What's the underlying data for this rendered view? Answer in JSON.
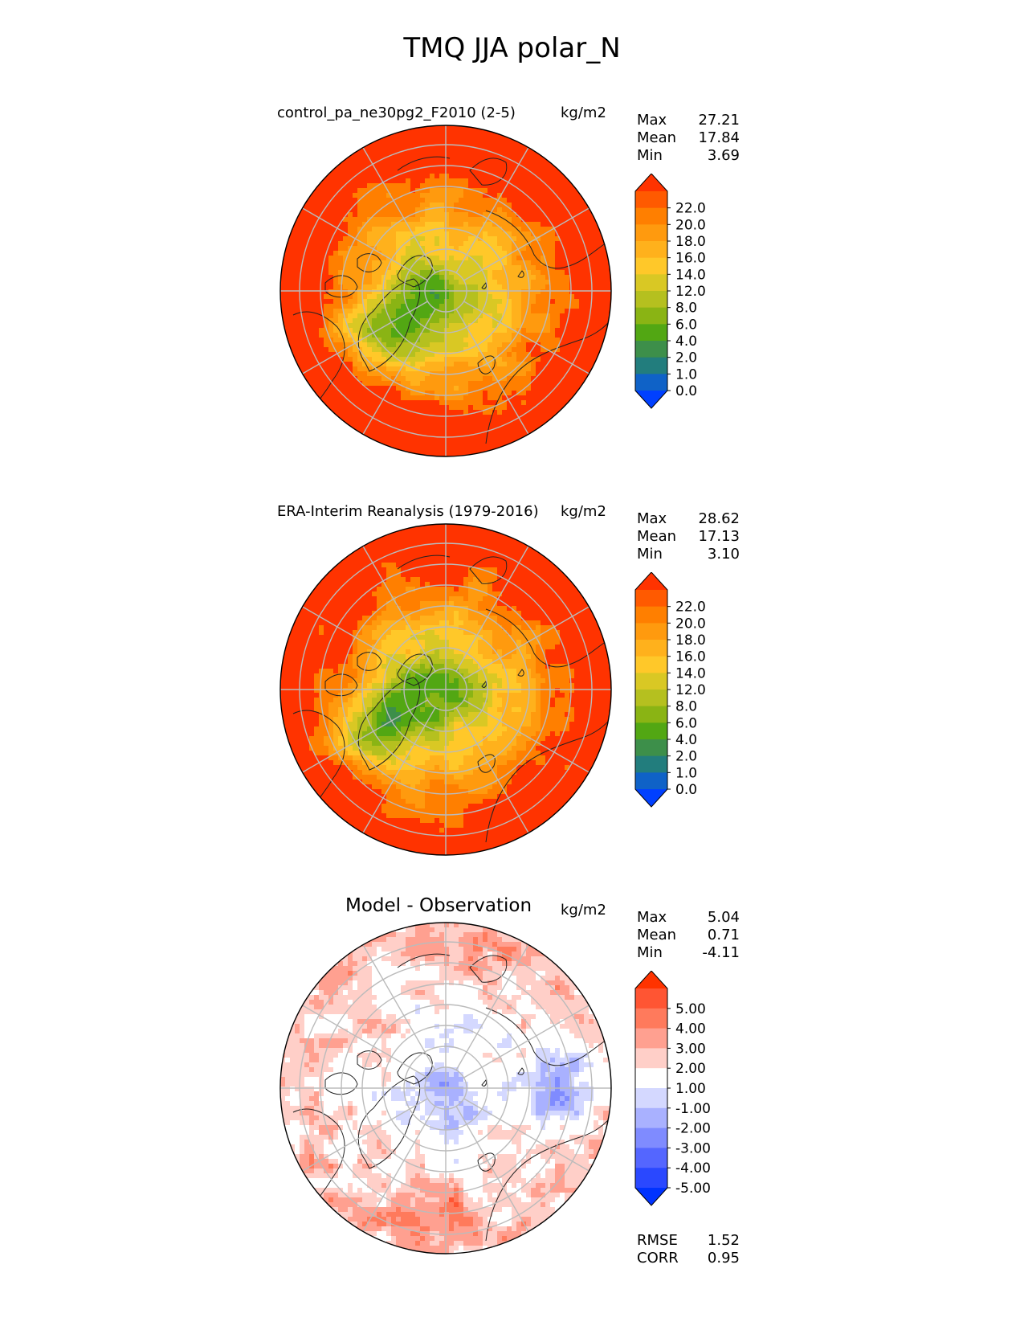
{
  "title": "TMQ JJA polar_N",
  "panels": [
    {
      "title": "control_pa_ne30pg2_F2010 (2-5)",
      "units": "kg/m2",
      "stats": {
        "max_label": "Max",
        "max": "27.21",
        "mean_label": "Mean",
        "mean": "17.84",
        "min_label": "Min",
        "min": "3.69"
      },
      "colorbar_ticks": [
        "22.0",
        "20.0",
        "18.0",
        "16.0",
        "14.0",
        "12.0",
        "8.0",
        "6.0",
        "4.0",
        "2.0",
        "1.0",
        "0.0"
      ]
    },
    {
      "title": "ERA-Interim Reanalysis (1979-2016)",
      "units": "kg/m2",
      "stats": {
        "max_label": "Max",
        "max": "28.62",
        "mean_label": "Mean",
        "mean": "17.13",
        "min_label": "Min",
        "min": "3.10"
      },
      "colorbar_ticks": [
        "22.0",
        "20.0",
        "18.0",
        "16.0",
        "14.0",
        "12.0",
        "8.0",
        "6.0",
        "4.0",
        "2.0",
        "1.0",
        "0.0"
      ]
    },
    {
      "title": "Model - Observation",
      "units": "kg/m2",
      "stats": {
        "max_label": "Max",
        "max": "5.04",
        "mean_label": "Mean",
        "mean": "0.71",
        "min_label": "Min",
        "min": "-4.11"
      },
      "colorbar_ticks": [
        "5.00",
        "4.00",
        "3.00",
        "2.00",
        "1.00",
        "-1.00",
        "-2.00",
        "-3.00",
        "-4.00",
        "-5.00"
      ],
      "metrics": {
        "rmse_label": "RMSE",
        "rmse": "1.52",
        "corr_label": "CORR",
        "corr": "0.95"
      }
    }
  ],
  "colors": {
    "field_levels": [
      "#ff3300",
      "#ff5a00",
      "#ff7f00",
      "#ff9a0e",
      "#ffb11c",
      "#ffc829",
      "#d9c824",
      "#b5c01f",
      "#8ab414",
      "#52a713",
      "#3d8f4a",
      "#227d7d",
      "#0f62c7",
      "#0040ff"
    ],
    "diff_levels": [
      "#ff3300",
      "#ff5533",
      "#ff7a5c",
      "#ffa090",
      "#ffcfc8",
      "#ffffff",
      "#d4d8ff",
      "#a9b1ff",
      "#7f8bff",
      "#5466ff",
      "#2a48ff",
      "#0033ff"
    ],
    "grid": "#bbbbbb",
    "coast": "#222222"
  }
}
